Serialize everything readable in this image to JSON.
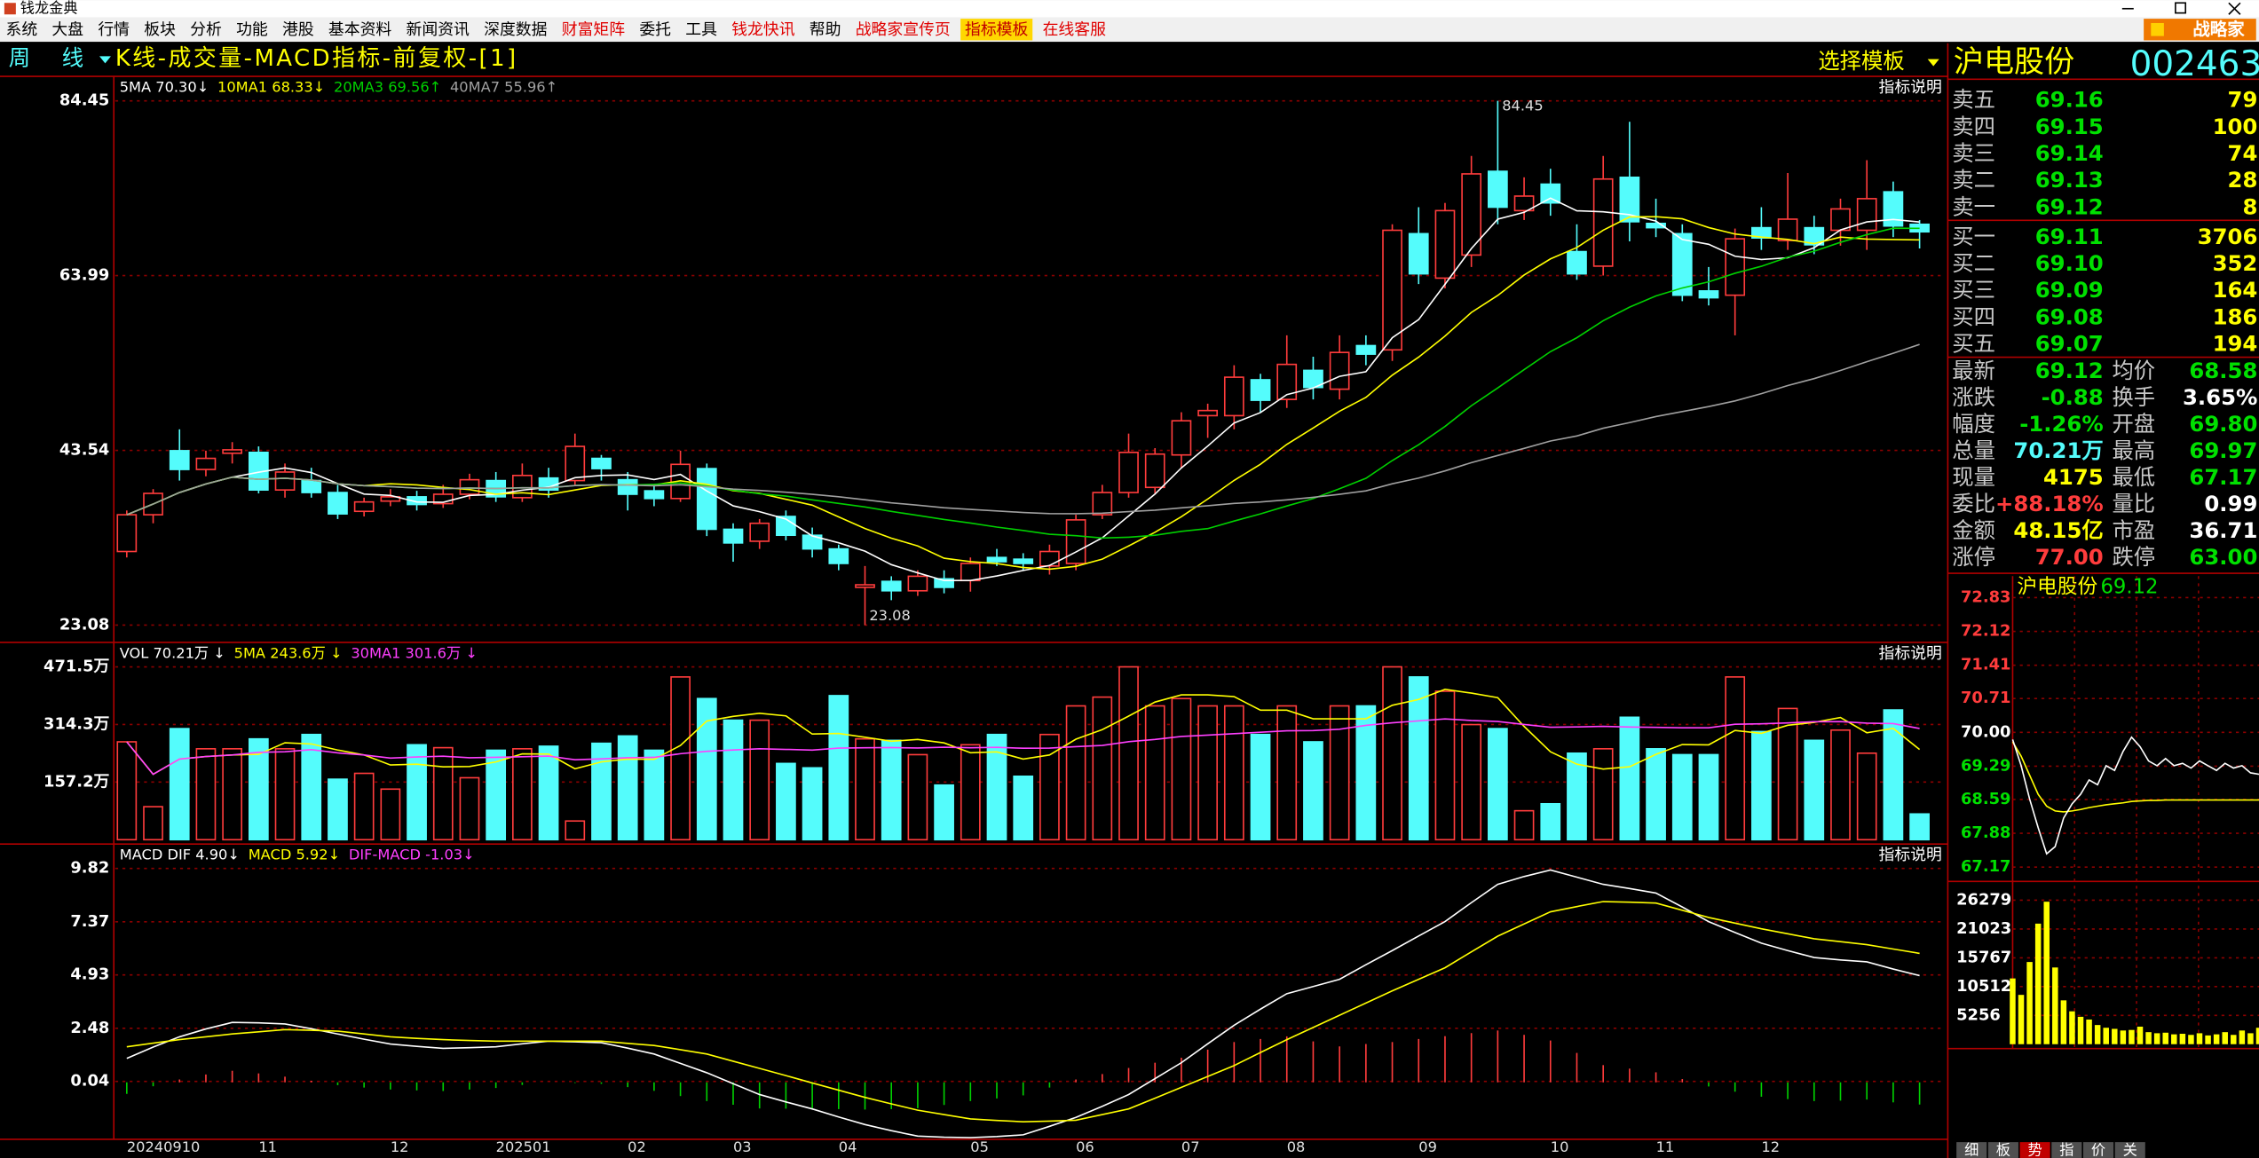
{
  "app": {
    "title": "钱龙金典"
  },
  "menu": {
    "items": [
      {
        "label": "系统"
      },
      {
        "label": "大盘"
      },
      {
        "label": "行情"
      },
      {
        "label": "板块"
      },
      {
        "label": "分析"
      },
      {
        "label": "功能"
      },
      {
        "label": "港股"
      },
      {
        "label": "基本资料"
      },
      {
        "label": "新闻资讯"
      },
      {
        "label": "深度数据"
      },
      {
        "label": "财富矩阵",
        "color": "#e00000"
      },
      {
        "label": "委托"
      },
      {
        "label": "工具"
      },
      {
        "label": "钱龙快讯",
        "color": "#e00000"
      },
      {
        "label": "帮助"
      },
      {
        "label": "战略家宣传页",
        "color": "#e00000"
      },
      {
        "label": "指标模板",
        "color": "#c00000",
        "background": "#ffd700"
      },
      {
        "label": "在线客服",
        "color": "#e00000"
      }
    ],
    "button": "战略家"
  },
  "header": {
    "period": "周线",
    "template": "K线-成交量-MACD指标-前复权-[1]",
    "select": "选择模板",
    "stock_name": "沪电股份",
    "stock_code": "002463"
  },
  "kline": {
    "help": "指标说明",
    "up_color": "#ff3c3c",
    "down_color": "#54fcfc",
    "legend": [
      {
        "name": "5MA 70.30↓",
        "color": "#ffffff"
      },
      {
        "name": "10MA1 68.33↓",
        "color": "#ffff00"
      },
      {
        "name": "20MA3 69.56↑",
        "color": "#00d000"
      },
      {
        "name": "40MA7 55.96↑",
        "color": "#a0a0a0"
      }
    ],
    "ylim": [
      21.23,
      86.98
    ],
    "yticks": [
      84.45,
      63.99,
      43.54,
      23.08
    ],
    "categories": [
      "20240910",
      null,
      null,
      null,
      null,
      "11",
      null,
      null,
      null,
      null,
      "12",
      null,
      null,
      null,
      "202501",
      null,
      null,
      null,
      null,
      "02",
      null,
      null,
      null,
      "03",
      null,
      null,
      null,
      "04",
      null,
      null,
      null,
      null,
      "05",
      null,
      null,
      null,
      "06",
      null,
      null,
      null,
      "07",
      null,
      null,
      null,
      "08",
      null,
      null,
      null,
      null,
      "09",
      null,
      null,
      null,
      null,
      "10",
      null,
      null,
      null,
      "11",
      null,
      null,
      null,
      "12",
      null,
      null,
      null,
      null,
      null,
      null
    ],
    "open": [
      31.7,
      36,
      43.5,
      41.3,
      43.2,
      43.3,
      38.9,
      40,
      38.6,
      36.4,
      37.6,
      38.1,
      37.3,
      38.4,
      40,
      38,
      40.3,
      40,
      42.6,
      40.1,
      38.8,
      37.9,
      41.4,
      34.3,
      32.9,
      35.8,
      33.6,
      32,
      27.5,
      28.2,
      27.1,
      28.5,
      28.3,
      31.0,
      30.8,
      30,
      30.3,
      36,
      38.6,
      39.2,
      43,
      47.6,
      47.6,
      51.8,
      49.5,
      52.9,
      50.7,
      55.8,
      55.3,
      68.9,
      63.7,
      66.4,
      76.2,
      71.6,
      74.7,
      66.8,
      65.1,
      75.5,
      70.1,
      68.9,
      62.2,
      61.7,
      69.6,
      68.1,
      69.6,
      69.3,
      69.3,
      73.8,
      70
    ],
    "high": [
      36.5,
      39,
      46,
      43.5,
      44.5,
      44,
      42,
      41.5,
      39.5,
      38,
      39,
      38.8,
      39.5,
      40.8,
      41,
      42,
      41.5,
      45.5,
      43,
      41,
      39.5,
      43.5,
      42,
      35,
      35.5,
      36.5,
      34.5,
      32.5,
      30,
      28.8,
      29.5,
      29.5,
      31,
      32,
      31.5,
      32.5,
      36,
      39.5,
      45.5,
      43.8,
      48,
      49,
      53.5,
      52.5,
      57,
      54.5,
      57,
      57,
      70,
      72,
      72.5,
      78,
      84.45,
      75.5,
      76.5,
      70,
      78,
      82,
      73,
      70,
      65,
      69.5,
      72,
      76,
      71,
      73,
      77.5,
      75,
      70.5
    ],
    "low": [
      31,
      35,
      40,
      40.5,
      42,
      38.5,
      38,
      38,
      35.5,
      35.8,
      37,
      36.5,
      36.8,
      37.8,
      37.5,
      37.5,
      38,
      39.5,
      40,
      36.5,
      37,
      37.5,
      33.5,
      30.5,
      32,
      33,
      31,
      29.5,
      23.08,
      26,
      26.5,
      26.8,
      27,
      30,
      29.5,
      29,
      29.5,
      35.5,
      38,
      38.5,
      41.5,
      45,
      46,
      48,
      48.5,
      49.5,
      49.5,
      53.5,
      54,
      63,
      62.5,
      65,
      70,
      70.5,
      71,
      63.5,
      64,
      68,
      68.5,
      61,
      60.5,
      57,
      67,
      67,
      66.5,
      67.5,
      67,
      68.5,
      67.17
    ],
    "close": [
      36.0,
      38.5,
      41.3,
      42.6,
      43.6,
      38.9,
      41,
      38.6,
      36.1,
      37.5,
      38.1,
      37.2,
      38.4,
      40.1,
      38.1,
      40.6,
      38.9,
      44,
      41.4,
      38.4,
      37.9,
      41.9,
      34.3,
      32.7,
      35.0,
      33.6,
      32,
      30.3,
      27.8,
      27.1,
      28.8,
      27.5,
      30.3,
      30.5,
      30.3,
      31.7,
      35.4,
      38.6,
      43.3,
      43.1,
      47,
      48.2,
      52.1,
      49.4,
      53.6,
      50.9,
      55,
      54.8,
      69.3,
      64.2,
      71.6,
      75.9,
      72,
      73.3,
      72.5,
      64.2,
      75.3,
      70.3,
      69.6,
      61.7,
      61.4,
      68.3,
      68.4,
      70.6,
      67.6,
      71.8,
      73,
      69.8,
      69.12
    ]
  },
  "volume": {
    "help": "指标说明",
    "legend": [
      {
        "name": "VOL 70.21万 ↓",
        "color": "#ffffff"
      },
      {
        "name": "5MA 243.6万 ↓",
        "color": "#ffff00"
      },
      {
        "name": "30MA1 301.6万 ↓",
        "color": "#ff40ff"
      }
    ],
    "ylim": [
      0,
      522.6
    ],
    "yticks": [
      {
        "value": 471.5,
        "label": "471.5万"
      },
      {
        "value": 314.3,
        "label": "314.3万"
      },
      {
        "value": 157.2,
        "label": "157.2万"
      }
    ],
    "values": [
      267,
      90,
      303,
      248,
      248,
      275,
      248,
      287,
      165,
      181,
      138,
      259,
      251,
      169,
      244,
      248,
      255,
      51,
      263,
      283,
      244,
      444,
      385,
      326,
      326,
      208,
      196,
      393,
      275,
      271,
      232,
      149,
      259,
      287,
      173,
      287,
      365,
      389,
      471.5,
      365,
      385,
      365,
      365,
      287,
      365,
      267,
      365,
      365,
      471.5,
      444,
      405,
      314,
      303,
      79,
      98,
      236,
      248,
      334,
      248,
      232,
      232,
      444,
      295,
      358,
      271,
      299,
      236,
      354,
      70.21
    ]
  },
  "macd": {
    "help": "指标说明",
    "up_color": "#ff3c3c",
    "down_color": "#00d000",
    "legend": [
      {
        "name": "MACD DIF 4.90↓",
        "color": "#ffffff"
      },
      {
        "name": "MACD 5.92↓",
        "color": "#ffff00"
      },
      {
        "name": "DIF-MACD -1.03↓",
        "color": "#ff40ff"
      }
    ],
    "ylim": [
      -2.68,
      10.81
    ],
    "yticks": [
      9.82,
      7.37,
      4.93,
      2.48,
      0.04
    ],
    "dif": [
      1.1,
      1.62,
      2.09,
      2.45,
      2.75,
      2.73,
      2.68,
      2.46,
      2.22,
      1.98,
      1.76,
      1.65,
      1.56,
      1.59,
      1.63,
      1.77,
      1.89,
      1.86,
      1.82,
      1.57,
      1.3,
      0.87,
      0.44,
      -0.06,
      -0.56,
      -0.9,
      -1.22,
      -1.59,
      -1.94,
      -2.22,
      -2.47,
      -2.52,
      -2.54,
      -2.49,
      -2.41,
      -2.02,
      -1.61,
      -1.1,
      -0.56,
      0.17,
      0.9,
      1.77,
      2.62,
      3.36,
      4.07,
      4.4,
      4.73,
      5.4,
      6.05,
      6.72,
      7.38,
      8.25,
      9.09,
      9.45,
      9.75,
      9.42,
      9.09,
      8.9,
      8.69,
      8.05,
      7.38,
      6.88,
      6.39,
      6.05,
      5.73,
      5.62,
      5.53,
      5.2,
      4.9
    ],
    "dea": [
      1.63,
      1.8,
      1.96,
      2.09,
      2.22,
      2.32,
      2.42,
      2.39,
      2.35,
      2.22,
      2.09,
      2.02,
      1.96,
      1.92,
      1.89,
      1.89,
      1.89,
      1.89,
      1.89,
      1.79,
      1.69,
      1.5,
      1.3,
      0.97,
      0.64,
      0.31,
      -0.03,
      -0.36,
      -0.69,
      -0.99,
      -1.28,
      -1.48,
      -1.68,
      -1.75,
      -1.81,
      -1.78,
      -1.74,
      -1.48,
      -1.22,
      -0.73,
      -0.23,
      0.27,
      0.77,
      1.37,
      1.96,
      2.52,
      3.08,
      3.64,
      4.2,
      4.73,
      5.26,
      5.99,
      6.71,
      7.27,
      7.83,
      8.07,
      8.3,
      8.27,
      8.23,
      7.9,
      7.57,
      7.31,
      7.05,
      6.82,
      6.59,
      6.46,
      6.32,
      6.12,
      5.92
    ]
  },
  "quote": {
    "order_book": [
      {
        "label": "卖五",
        "price": "69.16",
        "volume": "79"
      },
      {
        "label": "卖四",
        "price": "69.15",
        "volume": "100"
      },
      {
        "label": "卖三",
        "price": "69.14",
        "volume": "74"
      },
      {
        "label": "卖二",
        "price": "69.13",
        "volume": "28"
      },
      {
        "label": "卖一",
        "price": "69.12",
        "volume": "8"
      },
      {
        "label": "买一",
        "price": "69.11",
        "volume": "3706"
      },
      {
        "label": "买二",
        "price": "69.10",
        "volume": "352"
      },
      {
        "label": "买三",
        "price": "69.09",
        "volume": "164"
      },
      {
        "label": "买四",
        "price": "69.08",
        "volume": "186"
      },
      {
        "label": "买五",
        "price": "69.07",
        "volume": "194"
      }
    ],
    "stats": [
      [
        {
          "label": "最新",
          "value": "69.12",
          "color": "#00e000"
        },
        {
          "label": "均价",
          "value": "68.58",
          "color": "#00e000"
        }
      ],
      [
        {
          "label": "涨跌",
          "value": "-0.88",
          "color": "#00e000"
        },
        {
          "label": "换手",
          "value": "3.65%",
          "color": "#ffffff"
        }
      ],
      [
        {
          "label": "幅度",
          "value": "-1.26%",
          "color": "#00e000"
        },
        {
          "label": "开盘",
          "value": "69.80",
          "color": "#00e000"
        }
      ],
      [
        {
          "label": "总量",
          "value": "70.21万",
          "color": "#54fcfc"
        },
        {
          "label": "最高",
          "value": "69.97",
          "color": "#00e000"
        }
      ],
      [
        {
          "label": "现量",
          "value": "4175",
          "color": "#ffff00"
        },
        {
          "label": "最低",
          "value": "67.17",
          "color": "#00e000"
        }
      ],
      [
        {
          "label": "委比",
          "value": "+88.18%",
          "color": "#ff3c3c"
        },
        {
          "label": "量比",
          "value": "0.99",
          "color": "#ffffff"
        }
      ],
      [
        {
          "label": "金额",
          "value": "48.15亿",
          "color": "#ffff00"
        },
        {
          "label": "市盈",
          "value": "36.71",
          "color": "#ffffff"
        }
      ],
      [
        {
          "label": "涨停",
          "value": "77.00",
          "color": "#ff3c3c"
        },
        {
          "label": "跌停",
          "value": "63.00",
          "color": "#00e000"
        }
      ]
    ]
  },
  "intraday": {
    "title": "沪电股份",
    "price": "69.12",
    "price_color": "#ffffff",
    "avg_color": "#ffff00",
    "vol_color": "#ffff00",
    "ylim": [
      66.99,
      73.13
    ],
    "yticks": [
      72.83,
      72.12,
      71.41,
      70.71,
      {
        "value": 70,
        "label": "70.00"
      },
      69.29,
      68.59,
      67.88,
      67.17
    ],
    "vol_ylim": [
      0,
      28120
    ],
    "vol_yticks": [
      26279,
      21023,
      15767,
      10512,
      5256
    ],
    "prices": [
      69.85,
      69.3,
      68.6,
      68.0,
      67.45,
      67.6,
      68.2,
      68.5,
      68.7,
      69.0,
      68.9,
      69.3,
      69.2,
      69.6,
      69.9,
      69.7,
      69.4,
      69.3,
      69.45,
      69.3,
      69.35,
      69.25,
      69.4,
      69.3,
      69.2,
      69.35,
      69.25,
      69.3,
      69.15,
      69.12
    ],
    "averages": [
      69.8,
      69.5,
      69.1,
      68.7,
      68.45,
      68.35,
      68.33,
      68.35,
      68.38,
      68.42,
      68.45,
      68.48,
      68.5,
      68.52,
      68.55,
      68.56,
      68.57,
      68.57,
      68.58,
      68.58,
      68.58,
      68.58,
      68.58,
      68.58,
      68.58,
      68.58,
      68.58,
      68.58,
      68.58,
      68.58
    ],
    "volumes": [
      12000,
      9000,
      15000,
      22000,
      26000,
      14000,
      8000,
      6000,
      5000,
      4500,
      3500,
      3000,
      2800,
      2500,
      2600,
      3200,
      2200,
      2000,
      2100,
      1800,
      1900,
      1700,
      2000,
      1600,
      1800,
      2200,
      1700,
      2500,
      2000,
      3000
    ]
  },
  "tabs": [
    "细",
    "板",
    "势",
    "指",
    "价",
    "关"
  ]
}
